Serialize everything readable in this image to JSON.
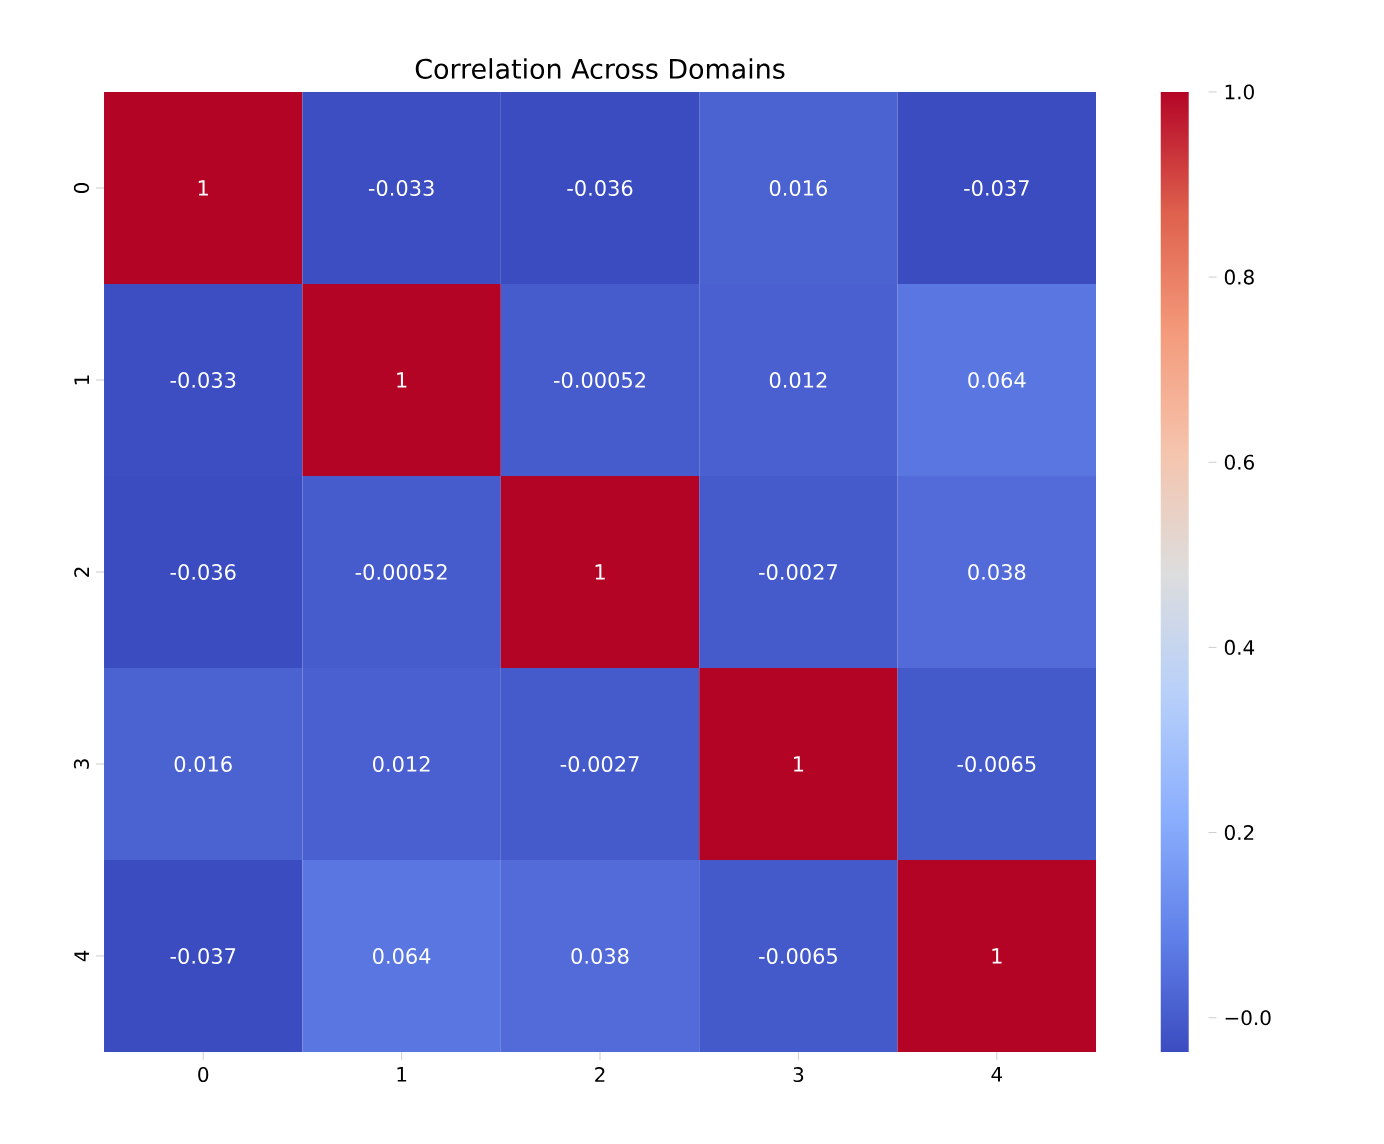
{
  "chart_data": {
    "type": "heatmap",
    "title": "Correlation Across Domains",
    "categories": [
      "0",
      "1",
      "2",
      "3",
      "4"
    ],
    "y_categories": [
      "0",
      "1",
      "2",
      "3",
      "4"
    ],
    "cells": [
      [
        1,
        -0.033,
        -0.036,
        0.016,
        -0.037
      ],
      [
        -0.033,
        1,
        -0.00052,
        0.012,
        0.064
      ],
      [
        -0.036,
        -0.00052,
        1,
        -0.0027,
        0.038
      ],
      [
        0.016,
        0.012,
        -0.0027,
        1,
        -0.0065
      ],
      [
        -0.037,
        0.064,
        0.038,
        -0.0065,
        1
      ]
    ],
    "data_labels": true,
    "clim": [
      -0.037,
      1
    ],
    "cticks": [
      {
        "value": 0,
        "label": "−0.0"
      },
      0.2,
      0.4,
      0.6,
      0.8,
      {
        "value": 1,
        "label": "1.0"
      }
    ]
  }
}
